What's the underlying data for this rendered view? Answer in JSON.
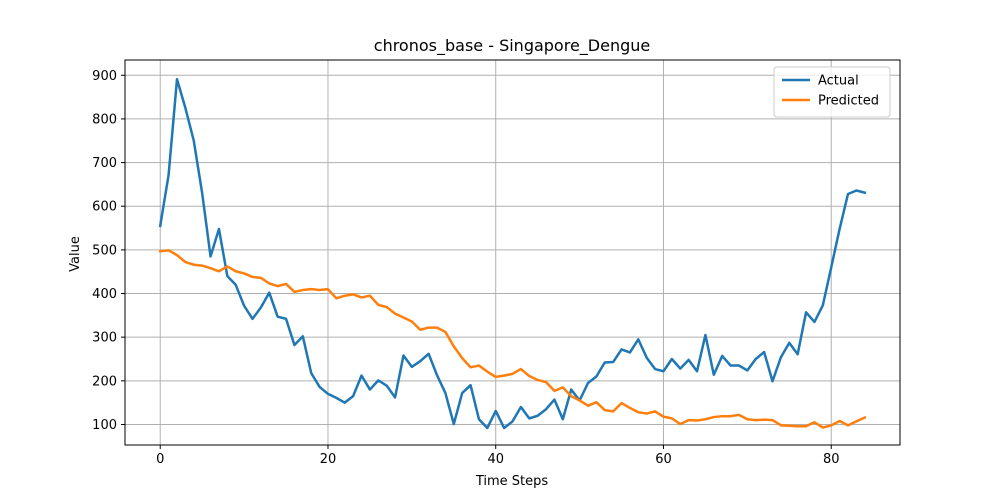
{
  "chart_data": {
    "type": "line",
    "title": "chronos_base - Singapore_Dengue",
    "xlabel": "Time Steps",
    "ylabel": "Value",
    "xlim": [
      -4.2,
      88.2
    ],
    "ylim": [
      53,
      935
    ],
    "xticks": [
      0,
      20,
      40,
      60,
      80
    ],
    "yticks": [
      100,
      200,
      300,
      400,
      500,
      600,
      700,
      800,
      900
    ],
    "grid": true,
    "legend_position": "top-right",
    "series": [
      {
        "name": "Actual",
        "color": "#1f77b4",
        "values": [
          555,
          672,
          891,
          825,
          750,
          630,
          485,
          548,
          440,
          420,
          372,
          342,
          368,
          402,
          347,
          342,
          282,
          302,
          218,
          186,
          170,
          161,
          150,
          165,
          212,
          180,
          201,
          189,
          162,
          258,
          232,
          245,
          262,
          213,
          172,
          101,
          172,
          190,
          112,
          92,
          131,
          92,
          107,
          140,
          114,
          120,
          135,
          157,
          112,
          180,
          155,
          195,
          210,
          242,
          243,
          272,
          265,
          295,
          253,
          227,
          222,
          250,
          228,
          248,
          222,
          305,
          214,
          257,
          235,
          235,
          224,
          250,
          266,
          199,
          254,
          287,
          261,
          357,
          335,
          373,
          460,
          548,
          628,
          636,
          631
        ]
      },
      {
        "name": "Predicted",
        "color": "#ff7f0e",
        "values": [
          497,
          499,
          488,
          472,
          466,
          464,
          458,
          451,
          462,
          451,
          446,
          438,
          436,
          423,
          417,
          422,
          404,
          408,
          410,
          408,
          410,
          389,
          395,
          398,
          391,
          395,
          374,
          369,
          354,
          345,
          336,
          317,
          322,
          322,
          312,
          279,
          252,
          231,
          235,
          221,
          209,
          212,
          216,
          227,
          211,
          202,
          197,
          177,
          185,
          165,
          155,
          143,
          151,
          133,
          130,
          149,
          138,
          128,
          125,
          130,
          118,
          114,
          101,
          110,
          109,
          112,
          117,
          119,
          119,
          122,
          112,
          110,
          111,
          110,
          98,
          97,
          96,
          96,
          105,
          93,
          98,
          108,
          98,
          107,
          116
        ]
      }
    ]
  }
}
